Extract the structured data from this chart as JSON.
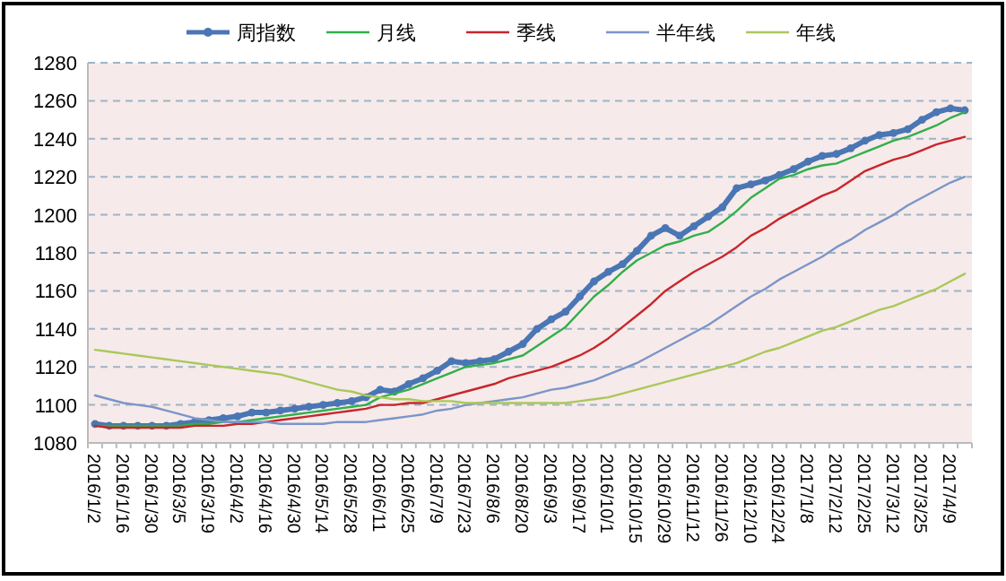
{
  "chart_data": {
    "type": "line",
    "categories": [
      "2016/1/2",
      null,
      "2016/1/16",
      null,
      "2016/1/30",
      null,
      "2016/3/5",
      null,
      "2016/3/19",
      null,
      "2016/4/2",
      null,
      "2016/4/16",
      null,
      "2016/4/30",
      null,
      "2016/5/14",
      null,
      "2016/5/28",
      null,
      "2016/6/11",
      null,
      "2016/6/25",
      null,
      "2016/7/9",
      null,
      "2016/7/23",
      null,
      "2016/8/6",
      null,
      "2016/8/20",
      null,
      "2016/9/3",
      null,
      "2016/9/17",
      null,
      "2016/10/1",
      null,
      "2016/10/15",
      null,
      "2016/10/29",
      null,
      "2016/11/12",
      null,
      "2016/11/26",
      null,
      "2016/12/10",
      null,
      "2016/12/24",
      null,
      "2017/1/8",
      null,
      "2017/2/12",
      null,
      "2017/2/25",
      null,
      "2017/3/12",
      null,
      "2017/3/25",
      null,
      "2017/4/9",
      null
    ],
    "series": [
      {
        "name": "周指数",
        "color": "#4a76b4",
        "marker": "circle",
        "values": [
          1090,
          1089,
          1089,
          1089,
          1089,
          1089,
          1090,
          1091,
          1092,
          1093,
          1094,
          1096,
          1096,
          1097,
          1098,
          1099,
          1100,
          1101,
          1102,
          1104,
          1108,
          1107,
          1111,
          1114,
          1118,
          1123,
          1122,
          1123,
          1124,
          1128,
          1132,
          1140,
          1145,
          1149,
          1157,
          1165,
          1170,
          1174,
          1181,
          1189,
          1193,
          1189,
          1194,
          1199,
          1204,
          1214,
          1216,
          1218,
          1221,
          1224,
          1228,
          1231,
          1232,
          1235,
          1239,
          1242,
          1243,
          1245,
          1250,
          1254,
          1256,
          1255
        ]
      },
      {
        "name": "月线",
        "color": "#2fb04a",
        "marker": "none",
        "values": [
          1089,
          1089,
          1089,
          1089,
          1089,
          1089,
          1089,
          1090,
          1090,
          1091,
          1091,
          1092,
          1093,
          1094,
          1095,
          1096,
          1097,
          1098,
          1099,
          1100,
          1104,
          1106,
          1108,
          1111,
          1114,
          1117,
          1120,
          1121,
          1122,
          1124,
          1126,
          1131,
          1136,
          1141,
          1149,
          1157,
          1163,
          1170,
          1176,
          1180,
          1184,
          1186,
          1189,
          1191,
          1196,
          1202,
          1209,
          1214,
          1219,
          1221,
          1224,
          1226,
          1227,
          1230,
          1233,
          1236,
          1239,
          1241,
          1244,
          1247,
          1251,
          1254
        ]
      },
      {
        "name": "季线",
        "color": "#c8262b",
        "marker": "none",
        "values": [
          1089,
          1088,
          1088,
          1088,
          1088,
          1088,
          1088,
          1089,
          1089,
          1089,
          1090,
          1090,
          1091,
          1092,
          1093,
          1094,
          1095,
          1096,
          1097,
          1098,
          1100,
          1100,
          1101,
          1101,
          1103,
          1105,
          1107,
          1109,
          1111,
          1114,
          1116,
          1118,
          1120,
          1123,
          1126,
          1130,
          1135,
          1141,
          1147,
          1153,
          1160,
          1165,
          1170,
          1174,
          1178,
          1183,
          1189,
          1193,
          1198,
          1202,
          1206,
          1210,
          1213,
          1218,
          1223,
          1226,
          1229,
          1231,
          1234,
          1237,
          1239,
          1241
        ]
      },
      {
        "name": "半年线",
        "color": "#7b95c8",
        "marker": "none",
        "values": [
          1105,
          1103,
          1101,
          1100,
          1099,
          1097,
          1095,
          1093,
          1092,
          1091,
          1091,
          1091,
          1091,
          1090,
          1090,
          1090,
          1090,
          1091,
          1091,
          1091,
          1092,
          1093,
          1094,
          1095,
          1097,
          1098,
          1100,
          1101,
          1102,
          1103,
          1104,
          1106,
          1108,
          1109,
          1111,
          1113,
          1116,
          1119,
          1122,
          1126,
          1130,
          1134,
          1138,
          1142,
          1147,
          1152,
          1157,
          1161,
          1166,
          1170,
          1174,
          1178,
          1183,
          1187,
          1192,
          1196,
          1200,
          1205,
          1209,
          1213,
          1217,
          1220
        ]
      },
      {
        "name": "年线",
        "color": "#a9c85a",
        "marker": "none",
        "values": [
          1129,
          1128,
          1127,
          1126,
          1125,
          1124,
          1123,
          1122,
          1121,
          1120,
          1119,
          1118,
          1117,
          1116,
          1114,
          1112,
          1110,
          1108,
          1107,
          1105,
          1104,
          1103,
          1103,
          1102,
          1102,
          1102,
          1101,
          1101,
          1101,
          1101,
          1101,
          1101,
          1101,
          1101,
          1102,
          1103,
          1104,
          1106,
          1108,
          1110,
          1112,
          1114,
          1116,
          1118,
          1120,
          1122,
          1125,
          1128,
          1130,
          1133,
          1136,
          1139,
          1141,
          1144,
          1147,
          1150,
          1152,
          1155,
          1158,
          1161,
          1165,
          1169
        ]
      }
    ],
    "ylim": [
      1080,
      1280
    ],
    "yticks": [
      1080,
      1100,
      1120,
      1140,
      1160,
      1180,
      1200,
      1220,
      1240,
      1260,
      1280
    ],
    "grid": "y",
    "legend": "top"
  }
}
